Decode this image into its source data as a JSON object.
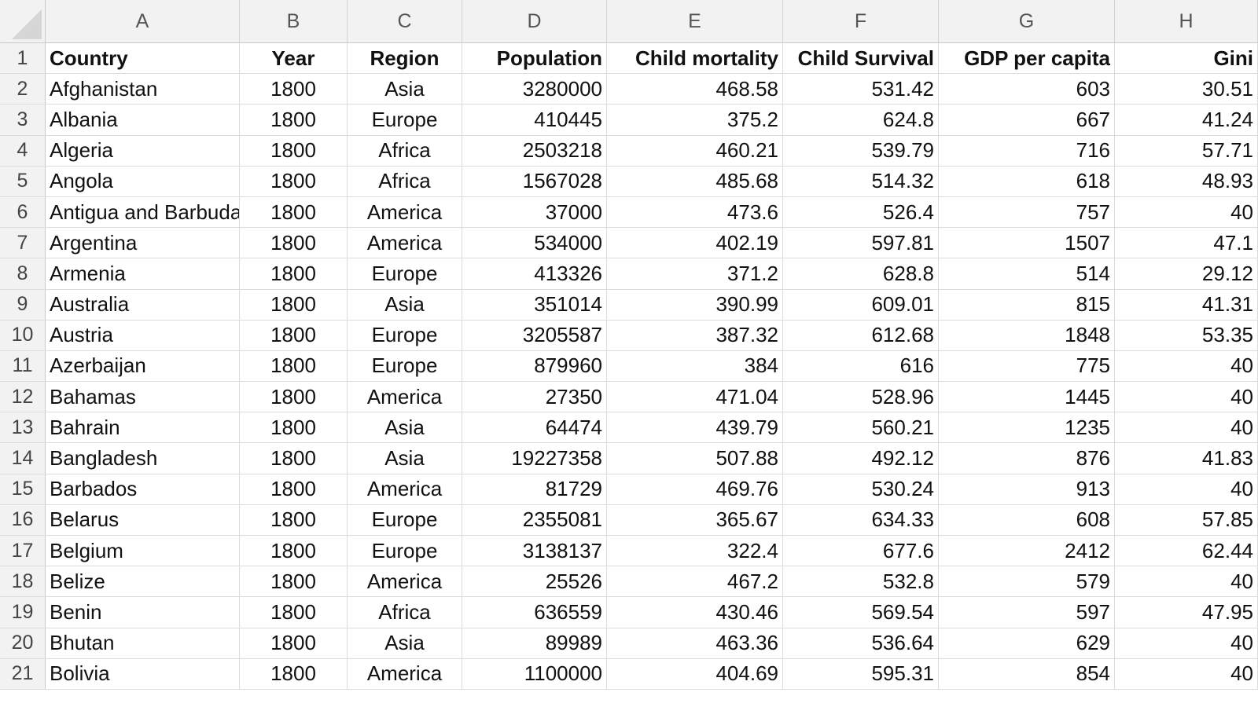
{
  "sheet": {
    "columns": [
      "A",
      "B",
      "C",
      "D",
      "E",
      "F",
      "G",
      "H"
    ],
    "header": [
      "Country",
      "Year",
      "Region",
      "Population",
      "Child mortality",
      "Child Survival",
      "GDP per capita",
      "Gini"
    ],
    "rows": [
      [
        "Afghanistan",
        "1800",
        "Asia",
        "3280000",
        "468.58",
        "531.42",
        "603",
        "30.51"
      ],
      [
        "Albania",
        "1800",
        "Europe",
        "410445",
        "375.2",
        "624.8",
        "667",
        "41.24"
      ],
      [
        "Algeria",
        "1800",
        "Africa",
        "2503218",
        "460.21",
        "539.79",
        "716",
        "57.71"
      ],
      [
        "Angola",
        "1800",
        "Africa",
        "1567028",
        "485.68",
        "514.32",
        "618",
        "48.93"
      ],
      [
        "Antigua and Barbuda",
        "1800",
        "America",
        "37000",
        "473.6",
        "526.4",
        "757",
        "40"
      ],
      [
        "Argentina",
        "1800",
        "America",
        "534000",
        "402.19",
        "597.81",
        "1507",
        "47.1"
      ],
      [
        "Armenia",
        "1800",
        "Europe",
        "413326",
        "371.2",
        "628.8",
        "514",
        "29.12"
      ],
      [
        "Australia",
        "1800",
        "Asia",
        "351014",
        "390.99",
        "609.01",
        "815",
        "41.31"
      ],
      [
        "Austria",
        "1800",
        "Europe",
        "3205587",
        "387.32",
        "612.68",
        "1848",
        "53.35"
      ],
      [
        "Azerbaijan",
        "1800",
        "Europe",
        "879960",
        "384",
        "616",
        "775",
        "40"
      ],
      [
        "Bahamas",
        "1800",
        "America",
        "27350",
        "471.04",
        "528.96",
        "1445",
        "40"
      ],
      [
        "Bahrain",
        "1800",
        "Asia",
        "64474",
        "439.79",
        "560.21",
        "1235",
        "40"
      ],
      [
        "Bangladesh",
        "1800",
        "Asia",
        "19227358",
        "507.88",
        "492.12",
        "876",
        "41.83"
      ],
      [
        "Barbados",
        "1800",
        "America",
        "81729",
        "469.76",
        "530.24",
        "913",
        "40"
      ],
      [
        "Belarus",
        "1800",
        "Europe",
        "2355081",
        "365.67",
        "634.33",
        "608",
        "57.85"
      ],
      [
        "Belgium",
        "1800",
        "Europe",
        "3138137",
        "322.4",
        "677.6",
        "2412",
        "62.44"
      ],
      [
        "Belize",
        "1800",
        "America",
        "25526",
        "467.2",
        "532.8",
        "579",
        "40"
      ],
      [
        "Benin",
        "1800",
        "Africa",
        "636559",
        "430.46",
        "569.54",
        "597",
        "47.95"
      ],
      [
        "Bhutan",
        "1800",
        "Asia",
        "89989",
        "463.36",
        "536.64",
        "629",
        "40"
      ],
      [
        "Bolivia",
        "1800",
        "America",
        "1100000",
        "404.69",
        "595.31",
        "854",
        "40"
      ]
    ],
    "row_numbers": [
      "1",
      "2",
      "3",
      "4",
      "5",
      "6",
      "7",
      "8",
      "9",
      "10",
      "11",
      "12",
      "13",
      "14",
      "15",
      "16",
      "17",
      "18",
      "19",
      "20",
      "21"
    ]
  }
}
